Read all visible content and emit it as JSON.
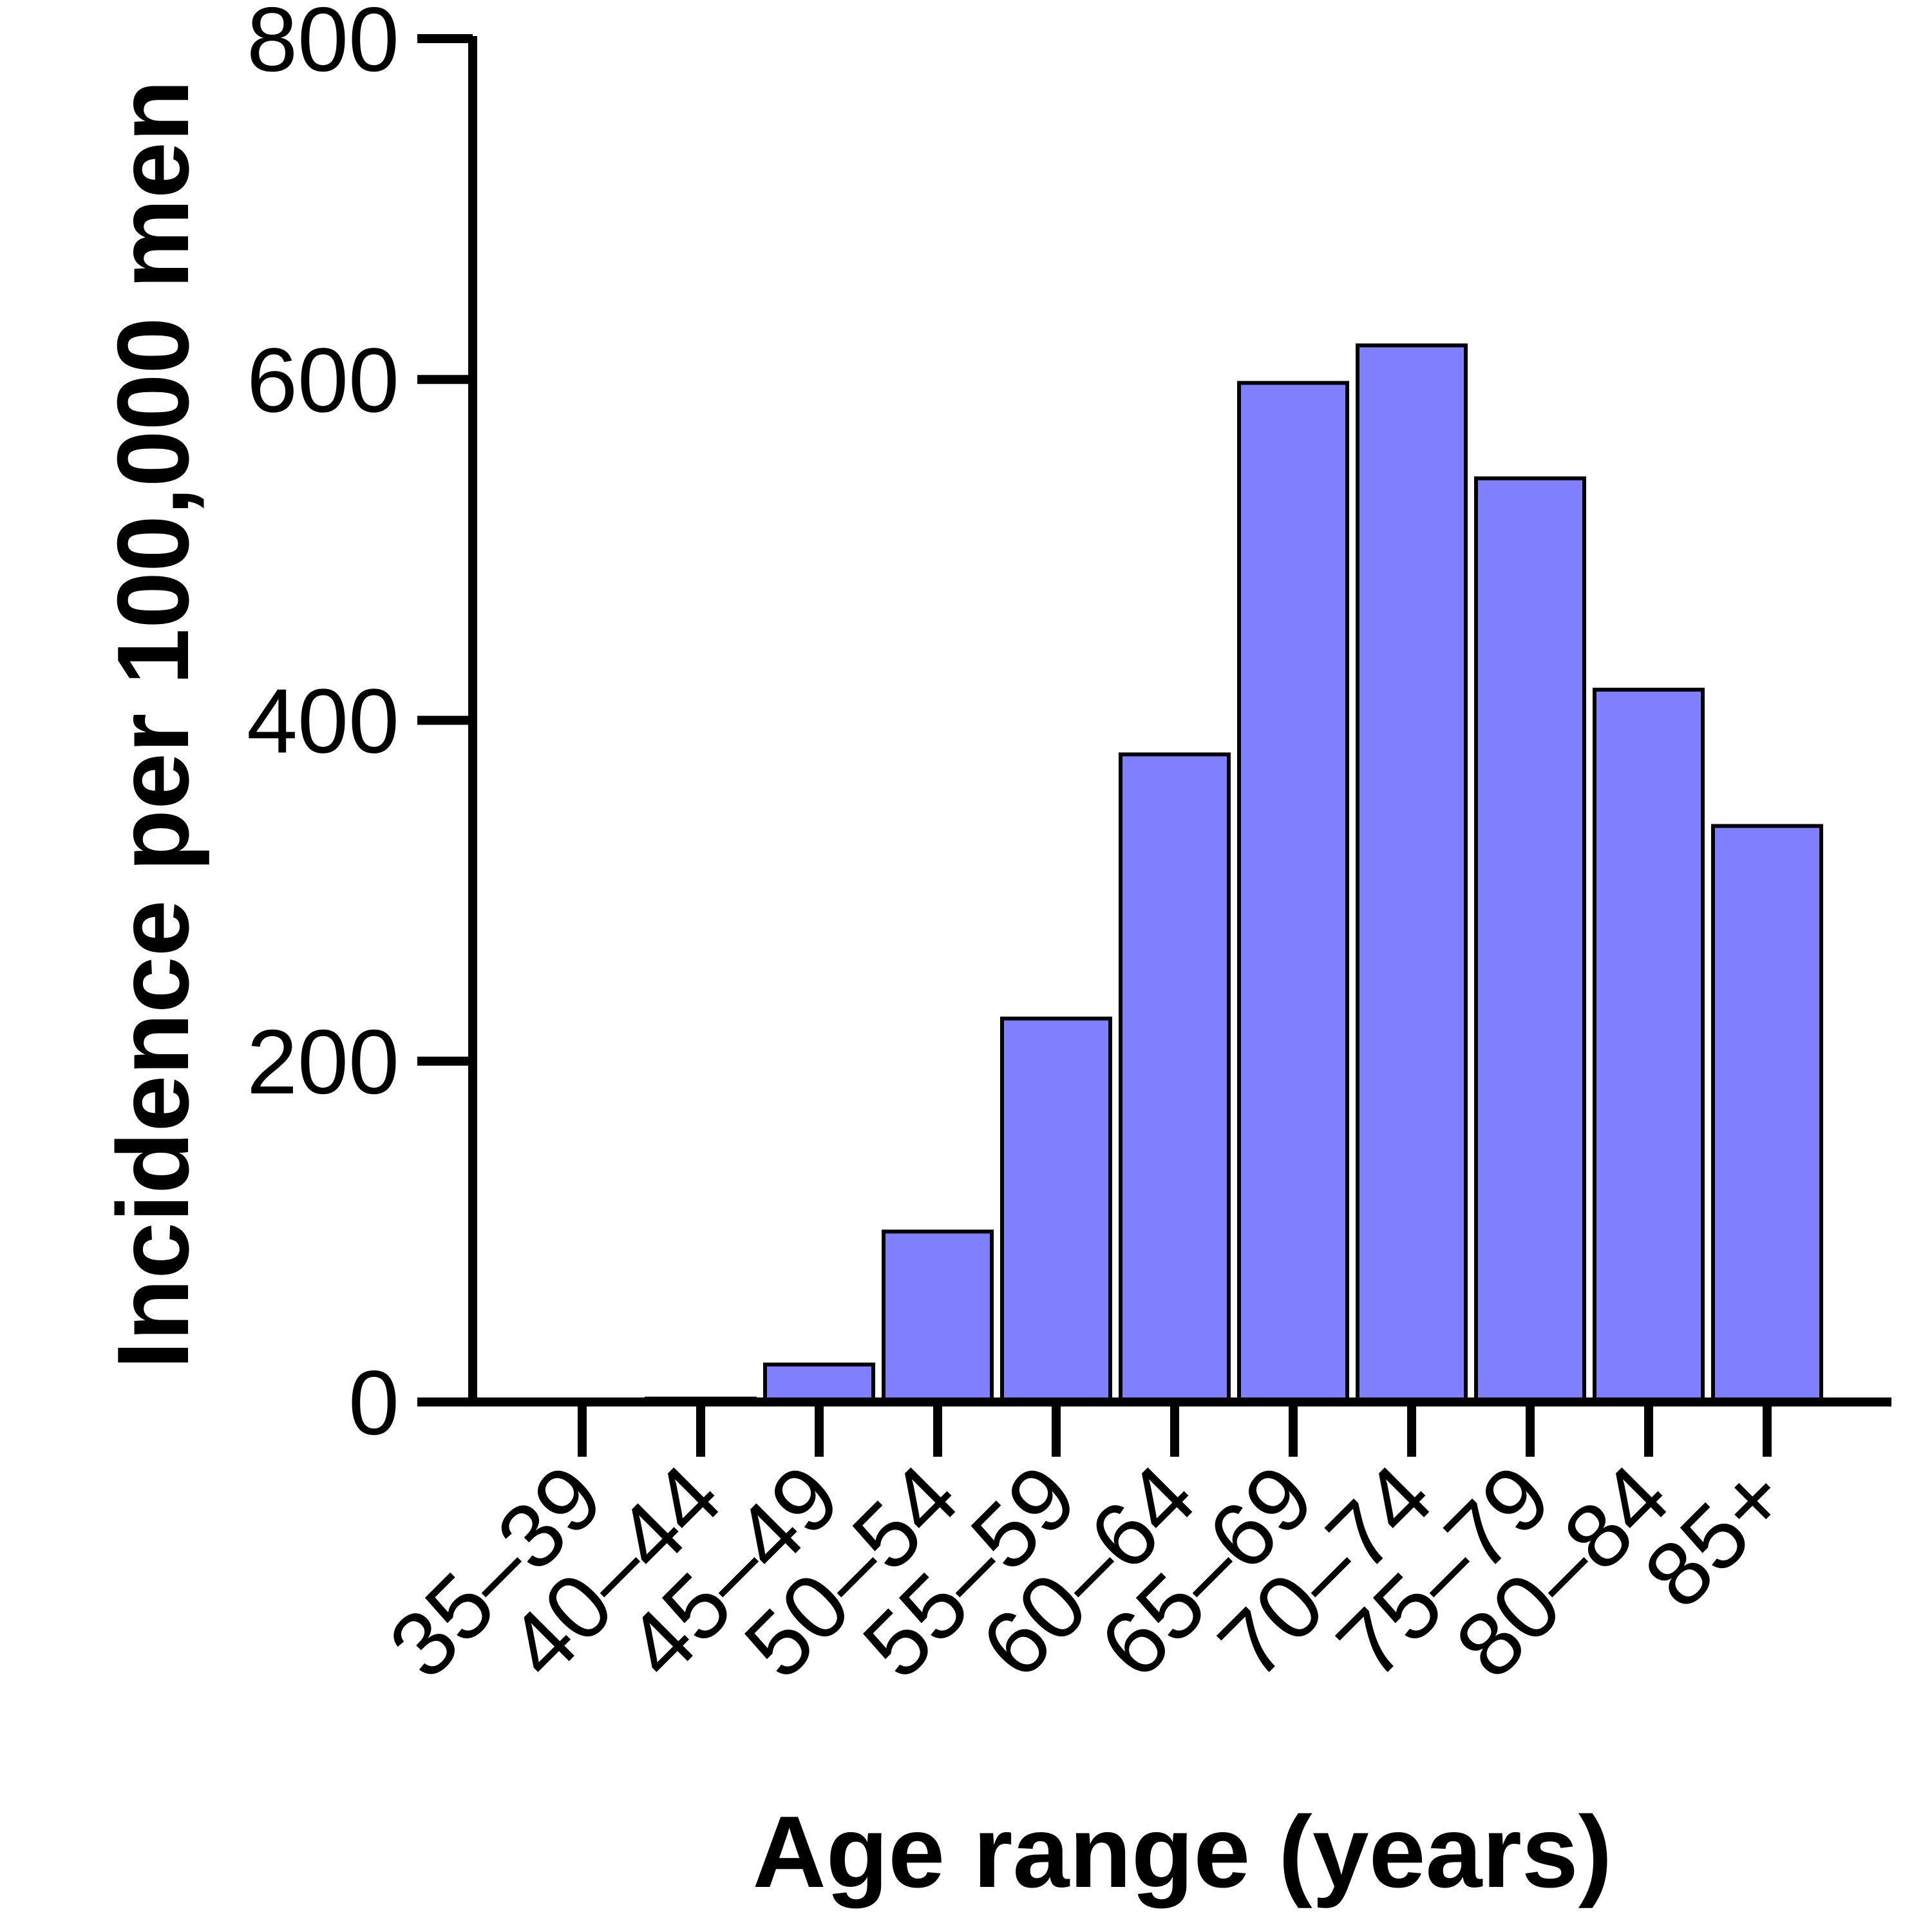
{
  "chart_data": {
    "type": "bar",
    "xlabel": "Age range (years)",
    "ylabel": "Incidence per 100,000 men",
    "categories": [
      "35–39",
      "40–44",
      "45–49",
      "50–54",
      "55–59",
      "60–64",
      "65–69",
      "70–74",
      "75–79",
      "80–84",
      "85+"
    ],
    "values": [
      0,
      2,
      22,
      100,
      225,
      380,
      598,
      620,
      542,
      418,
      338
    ],
    "ylim": [
      0,
      800
    ],
    "yticks": [
      0,
      200,
      400,
      600,
      800
    ],
    "grid": false,
    "legend": "none",
    "bar_color": "#8080FF",
    "bar_edge_color": "#000000"
  }
}
